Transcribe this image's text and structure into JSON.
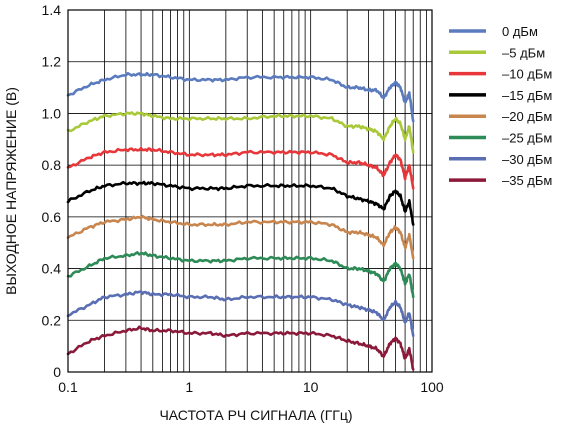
{
  "chart_data": {
    "type": "line",
    "xscale": "log",
    "xlim": [
      0.1,
      100
    ],
    "ylim": [
      0,
      1.4
    ],
    "grid": true,
    "legend_position": "right",
    "xlabel": "ЧАСТОТА РЧ СИГНАЛА (ГГц)",
    "ylabel": "ВЫХОДНОЕ НАПРЯЖЕНИЕ (В)",
    "x_ticks": [
      {
        "value": 0.1,
        "label": "0.1"
      },
      {
        "value": 1,
        "label": "1"
      },
      {
        "value": 10,
        "label": "10"
      },
      {
        "value": 100,
        "label": "100"
      }
    ],
    "y_ticks": [
      {
        "value": 0,
        "label": "0"
      },
      {
        "value": 0.2,
        "label": "0.2"
      },
      {
        "value": 0.4,
        "label": "0.4"
      },
      {
        "value": 0.6,
        "label": "0.6"
      },
      {
        "value": 0.8,
        "label": "0.8"
      },
      {
        "value": 1.0,
        "label": "1.0"
      },
      {
        "value": 1.2,
        "label": "1.2"
      },
      {
        "value": 1.4,
        "label": "1.4"
      }
    ],
    "x": [
      0.1,
      0.15,
      0.2,
      0.3,
      0.4,
      0.5,
      0.7,
      1,
      1.5,
      2,
      3,
      5,
      7,
      10,
      15,
      20,
      25,
      30,
      35,
      40,
      45,
      50,
      55,
      60,
      65,
      70
    ],
    "series": [
      {
        "name": "0 дБм",
        "color": "#5b7bbf",
        "values": [
          1.07,
          1.11,
          1.13,
          1.15,
          1.15,
          1.15,
          1.14,
          1.13,
          1.13,
          1.13,
          1.14,
          1.14,
          1.14,
          1.14,
          1.13,
          1.1,
          1.1,
          1.09,
          1.09,
          1.06,
          1.1,
          1.12,
          1.1,
          1.04,
          1.08,
          0.97
        ]
      },
      {
        "name": "–5 дБм",
        "color": "#a9c93a",
        "values": [
          0.93,
          0.97,
          0.99,
          1.0,
          1.0,
          0.99,
          0.98,
          0.98,
          0.98,
          0.98,
          0.98,
          0.99,
          0.99,
          0.99,
          0.98,
          0.95,
          0.95,
          0.94,
          0.93,
          0.9,
          0.95,
          0.98,
          0.96,
          0.9,
          0.95,
          0.85
        ]
      },
      {
        "name": "–10 дБм",
        "color": "#e8373a",
        "values": [
          0.79,
          0.83,
          0.85,
          0.86,
          0.86,
          0.86,
          0.85,
          0.84,
          0.84,
          0.84,
          0.85,
          0.85,
          0.85,
          0.85,
          0.84,
          0.81,
          0.81,
          0.8,
          0.79,
          0.76,
          0.81,
          0.84,
          0.82,
          0.75,
          0.8,
          0.71
        ]
      },
      {
        "name": "–15 дБм",
        "color": "#000000",
        "values": [
          0.66,
          0.7,
          0.72,
          0.73,
          0.73,
          0.73,
          0.72,
          0.71,
          0.71,
          0.71,
          0.72,
          0.72,
          0.72,
          0.72,
          0.71,
          0.68,
          0.67,
          0.66,
          0.65,
          0.63,
          0.68,
          0.7,
          0.68,
          0.62,
          0.66,
          0.57
        ]
      },
      {
        "name": "–20 дБм",
        "color": "#c8864e",
        "values": [
          0.52,
          0.56,
          0.58,
          0.59,
          0.6,
          0.59,
          0.58,
          0.57,
          0.57,
          0.57,
          0.58,
          0.58,
          0.58,
          0.58,
          0.57,
          0.54,
          0.54,
          0.53,
          0.52,
          0.49,
          0.54,
          0.56,
          0.54,
          0.48,
          0.53,
          0.44
        ]
      },
      {
        "name": "–25 дБм",
        "color": "#2e8b57",
        "values": [
          0.37,
          0.41,
          0.44,
          0.45,
          0.46,
          0.45,
          0.44,
          0.43,
          0.43,
          0.43,
          0.44,
          0.44,
          0.44,
          0.44,
          0.43,
          0.4,
          0.4,
          0.39,
          0.38,
          0.35,
          0.4,
          0.42,
          0.4,
          0.34,
          0.38,
          0.29
        ]
      },
      {
        "name": "–30 дБм",
        "color": "#5a6eb4",
        "values": [
          0.22,
          0.26,
          0.29,
          0.3,
          0.31,
          0.3,
          0.3,
          0.29,
          0.29,
          0.28,
          0.29,
          0.29,
          0.29,
          0.29,
          0.28,
          0.26,
          0.25,
          0.24,
          0.23,
          0.2,
          0.25,
          0.27,
          0.25,
          0.19,
          0.23,
          0.14
        ]
      },
      {
        "name": "–35 дБм",
        "color": "#8b1a3a",
        "values": [
          0.07,
          0.12,
          0.14,
          0.16,
          0.17,
          0.16,
          0.16,
          0.15,
          0.15,
          0.14,
          0.15,
          0.15,
          0.15,
          0.15,
          0.14,
          0.12,
          0.11,
          0.1,
          0.09,
          0.06,
          0.11,
          0.13,
          0.11,
          0.05,
          0.09,
          0.01
        ]
      }
    ]
  }
}
